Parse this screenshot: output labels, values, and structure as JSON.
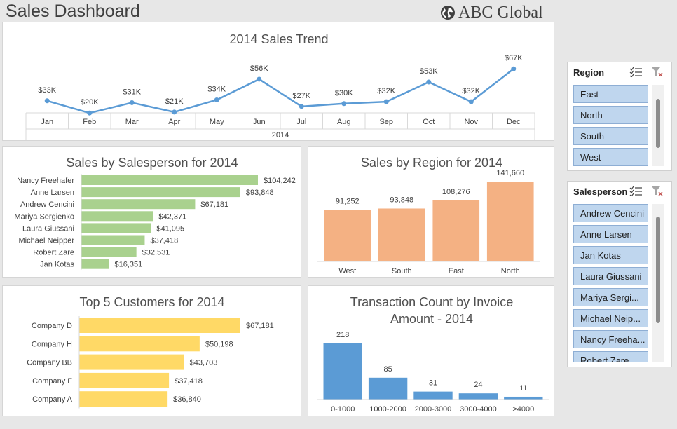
{
  "header": {
    "title": "Sales Dashboard",
    "brand": "ABC Global",
    "brand_icon": "globe-icon"
  },
  "colors": {
    "line": "#5b9bd5",
    "salesperson_bar": "#a9d18e",
    "region_bar": "#f4b183",
    "customer_bar": "#ffd966",
    "transaction_bar": "#5b9bd5",
    "slicer_item": "#bfd6ee"
  },
  "chart_data": [
    {
      "id": "trend",
      "type": "line",
      "title": "2014 Sales Trend",
      "categories": [
        "Jan",
        "Feb",
        "Mar",
        "Apr",
        "May",
        "Jun",
        "Jul",
        "Aug",
        "Sep",
        "Oct",
        "Nov",
        "Dec"
      ],
      "group_label": "2014",
      "values": [
        33,
        20,
        31,
        21,
        34,
        56,
        27,
        30,
        32,
        53,
        32,
        67
      ],
      "data_labels": [
        "$33K",
        "$20K",
        "$31K",
        "$21K",
        "$34K",
        "$56K",
        "$27K",
        "$30K",
        "$32K",
        "$53K",
        "$32K",
        "$67K"
      ]
    },
    {
      "id": "salesperson",
      "type": "bar",
      "orientation": "horizontal",
      "title": "Sales by Salesperson for 2014",
      "categories": [
        "Nancy Freehafer",
        "Anne Larsen",
        "Andrew Cencini",
        "Mariya Sergienko",
        "Laura Giussani",
        "Michael Neipper",
        "Robert Zare",
        "Jan Kotas"
      ],
      "values": [
        104242,
        93848,
        67181,
        42371,
        41095,
        37418,
        32531,
        16351
      ],
      "data_labels": [
        "$104,242",
        "$93,848",
        "$67,181",
        "$42,371",
        "$41,095",
        "$37,418",
        "$32,531",
        "$16,351"
      ]
    },
    {
      "id": "region",
      "type": "bar",
      "orientation": "vertical",
      "title": "Sales by Region for 2014",
      "categories": [
        "West",
        "South",
        "East",
        "North"
      ],
      "values": [
        91252,
        93848,
        108276,
        141660
      ],
      "data_labels": [
        "91,252",
        "93,848",
        "108,276",
        "141,660"
      ]
    },
    {
      "id": "customers",
      "type": "bar",
      "orientation": "horizontal",
      "title": "Top 5 Customers for 2014",
      "categories": [
        "Company D",
        "Company H",
        "Company BB",
        "Company F",
        "Company A"
      ],
      "values": [
        67181,
        50198,
        43703,
        37418,
        36840
      ],
      "data_labels": [
        "$67,181",
        "$50,198",
        "$43,703",
        "$37,418",
        "$36,840"
      ]
    },
    {
      "id": "transactions",
      "type": "bar",
      "orientation": "vertical",
      "title_lines": [
        "Transaction Count by Invoice",
        "Amount - 2014"
      ],
      "categories": [
        "0-1000",
        "1000-2000",
        "2000-3000",
        "3000-4000",
        ">4000"
      ],
      "values": [
        218,
        85,
        31,
        24,
        11
      ],
      "data_labels": [
        "218",
        "85",
        "31",
        "24",
        "11"
      ]
    }
  ],
  "slicers": {
    "region": {
      "title": "Region",
      "items": [
        "East",
        "North",
        "South",
        "West"
      ]
    },
    "salesperson": {
      "title": "Salesperson",
      "items": [
        "Andrew Cencini",
        "Anne Larsen",
        "Jan Kotas",
        "Laura Giussani",
        "Mariya Sergi...",
        "Michael Neip...",
        "Nancy Freeha...",
        "Robert Zare"
      ]
    }
  }
}
